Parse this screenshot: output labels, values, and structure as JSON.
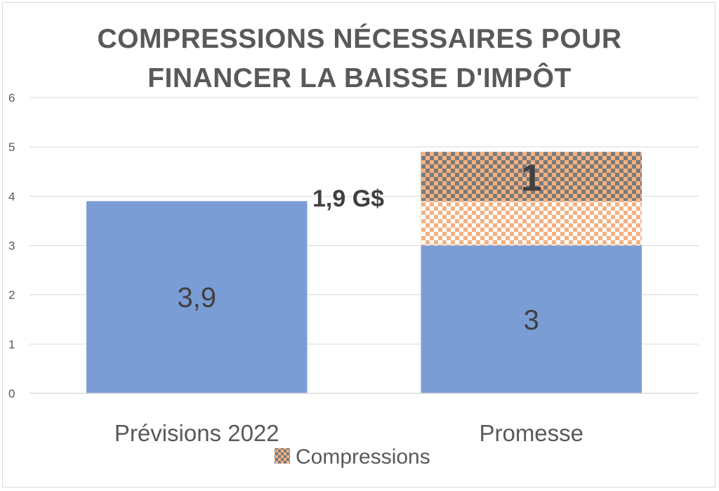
{
  "chart_data": {
    "type": "bar",
    "stacked": true,
    "title_lines": [
      "COMPRESSIONS NÉCESSAIRES POUR",
      "FINANCER LA BAISSE D'IMPÔT"
    ],
    "categories": [
      "Prévisions 2022",
      "Promesse"
    ],
    "series": [
      {
        "values": [
          3.9,
          3
        ],
        "labels": [
          "3,9",
          "3"
        ],
        "color": "#7b9dd6",
        "pattern": "solid"
      },
      {
        "values": [
          0,
          0.9
        ],
        "labels": [
          "",
          ""
        ],
        "color": "#f4b183",
        "pattern": "checker-light"
      },
      {
        "name": "Compressions",
        "values": [
          0,
          1
        ],
        "labels": [
          "",
          "1"
        ],
        "color": "#f4b183",
        "pattern": "checker-dark"
      }
    ],
    "annotation": {
      "text": "1,9 G$"
    },
    "ylim": [
      0,
      6
    ],
    "yticks": [
      0,
      1,
      2,
      3,
      4,
      5,
      6
    ],
    "grid": true,
    "legend_position": "bottom"
  }
}
